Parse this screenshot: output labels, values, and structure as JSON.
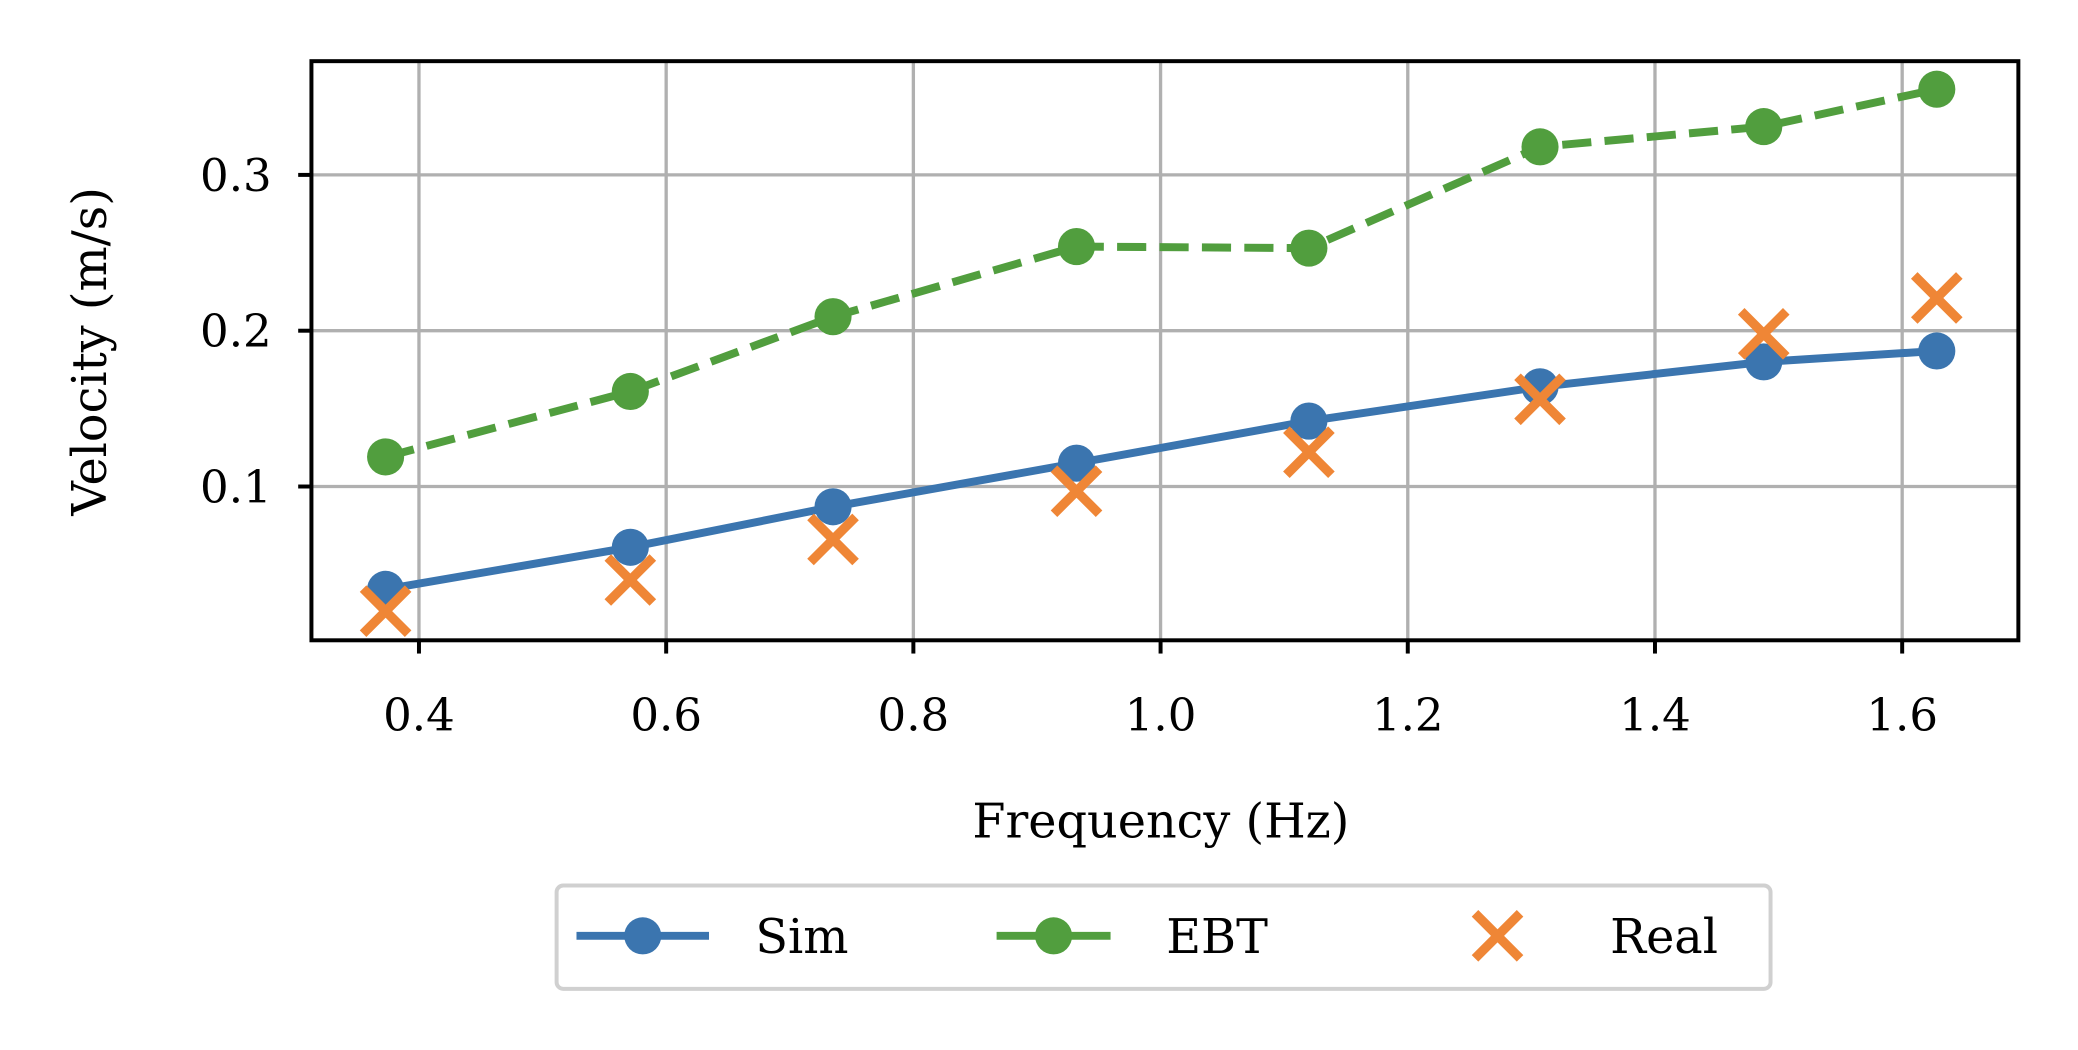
{
  "chart_data": {
    "type": "line",
    "title": "",
    "xlabel": "Frequency (Hz)",
    "ylabel": "Velocity (m/s)",
    "xlim": [
      0.313,
      1.694
    ],
    "ylim": [
      0.0013,
      0.373
    ],
    "xticks": [
      0.4,
      0.6,
      0.8,
      1.0,
      1.2,
      1.4,
      1.6
    ],
    "xtick_labels": [
      "0.4",
      "0.6",
      "0.8",
      "1.0",
      "1.2",
      "1.4",
      "1.6"
    ],
    "yticks": [
      0.1,
      0.2,
      0.3
    ],
    "ytick_labels": [
      "0.1",
      "0.2",
      "0.3"
    ],
    "grid": true,
    "legend_placement": "bottom-center outside",
    "x": [
      0.373,
      0.571,
      0.735,
      0.932,
      1.12,
      1.307,
      1.488,
      1.628
    ],
    "series": [
      {
        "name": "Sim",
        "color": "#3b75af",
        "line": "solid",
        "marker": "circle",
        "values": [
          0.034,
          0.061,
          0.087,
          0.115,
          0.142,
          0.164,
          0.18,
          0.187
        ]
      },
      {
        "name": "EBT",
        "color": "#519e3e",
        "line": "dashed",
        "marker": "circle",
        "values": [
          0.119,
          0.161,
          0.209,
          0.254,
          0.253,
          0.318,
          0.331,
          0.355
        ]
      },
      {
        "name": "Real",
        "color": "#ef8636",
        "line": "none",
        "marker": "x",
        "values": [
          0.02,
          0.04,
          0.066,
          0.097,
          0.122,
          0.156,
          0.198,
          0.221
        ]
      }
    ]
  }
}
